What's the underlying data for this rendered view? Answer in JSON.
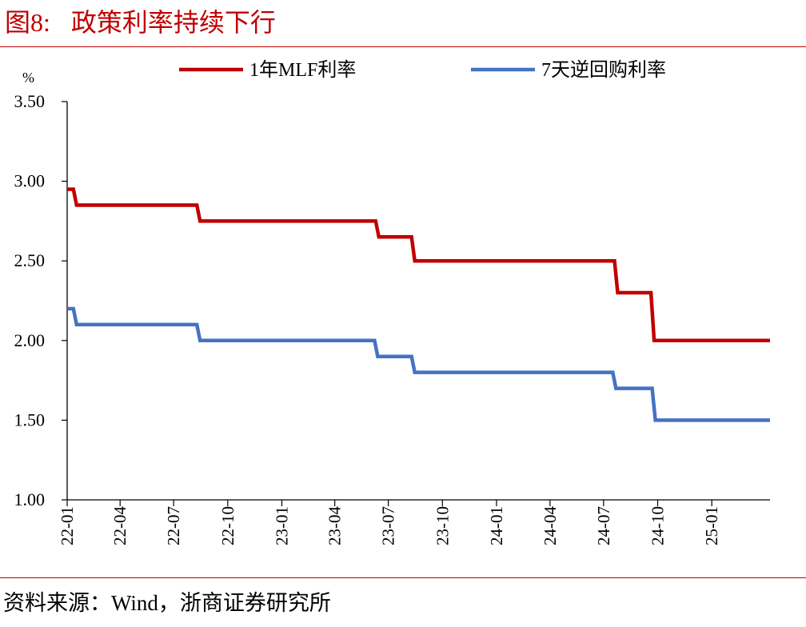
{
  "figure": {
    "label": "图8:",
    "title": "政策利率持续下行",
    "source_prefix": "资料来源：",
    "source_wind": "Wind",
    "source_suffix": "，浙商证券研究所"
  },
  "chart_data": {
    "type": "line",
    "title": "政策利率持续下行",
    "ylabel": "%",
    "xlabel": "",
    "ylim": [
      1.0,
      3.5
    ],
    "yticks": [
      "1.00",
      "1.50",
      "2.00",
      "2.50",
      "3.00",
      "3.50"
    ],
    "xticks": [
      "22-01",
      "22-04",
      "22-07",
      "22-10",
      "23-01",
      "23-04",
      "23-07",
      "23-10",
      "24-01",
      "24-04",
      "24-07",
      "24-10",
      "25-01"
    ],
    "xrange": [
      "2022-01-01",
      "2025-04-10"
    ],
    "grid": false,
    "legend_position": "top",
    "series": [
      {
        "name": "1年MLF利率",
        "color": "#c00000",
        "step": true,
        "points": [
          [
            "2022-01-01",
            2.95
          ],
          [
            "2022-01-17",
            2.85
          ],
          [
            "2022-08-15",
            2.75
          ],
          [
            "2023-06-15",
            2.65
          ],
          [
            "2023-08-15",
            2.5
          ],
          [
            "2024-07-25",
            2.3
          ],
          [
            "2024-09-25",
            2.0
          ],
          [
            "2025-04-10",
            2.0
          ]
        ]
      },
      {
        "name": "7天逆回购利率",
        "color": "#4472c4",
        "step": true,
        "points": [
          [
            "2022-01-01",
            2.2
          ],
          [
            "2022-01-17",
            2.1
          ],
          [
            "2022-08-15",
            2.0
          ],
          [
            "2023-06-13",
            1.9
          ],
          [
            "2023-08-15",
            1.8
          ],
          [
            "2024-07-22",
            1.7
          ],
          [
            "2024-09-27",
            1.5
          ],
          [
            "2025-04-10",
            1.5
          ]
        ]
      }
    ]
  }
}
